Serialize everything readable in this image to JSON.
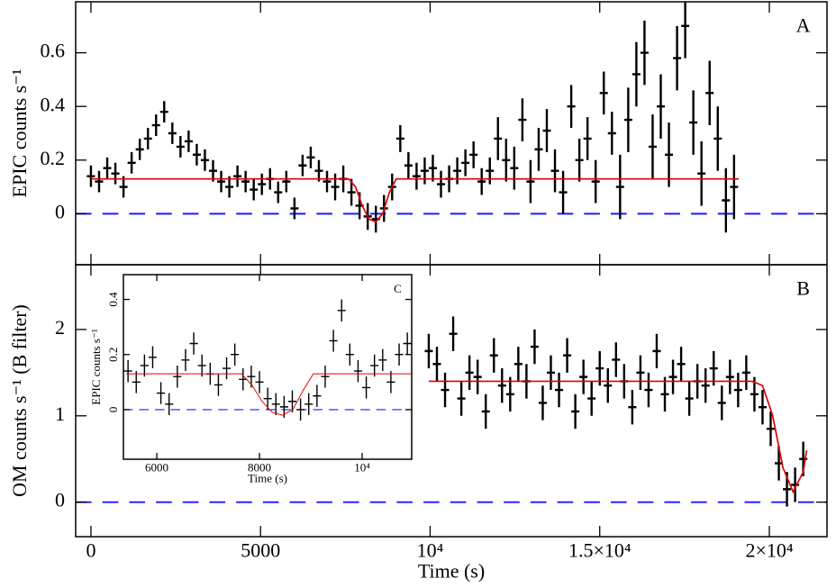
{
  "chart_data": [
    {
      "type": "errorbar",
      "panel_label": "A",
      "y_label": "EPIC counts s⁻¹",
      "xlim": [
        -450,
        21700
      ],
      "ylim": [
        -0.19,
        0.79
      ],
      "yticks": [
        0,
        0.2,
        0.4,
        0.6
      ],
      "reference_line": 0,
      "reference_color": "#1a1aff",
      "color": "#000000",
      "x": [
        0,
        240,
        480,
        720,
        960,
        1200,
        1440,
        1680,
        1920,
        2160,
        2400,
        2640,
        2880,
        3120,
        3360,
        3600,
        3840,
        4080,
        4320,
        4560,
        4800,
        5040,
        5280,
        5520,
        5760,
        6000,
        6240,
        6480,
        6720,
        6960,
        7200,
        7440,
        7680,
        7920,
        8160,
        8400,
        8640,
        8880,
        9120,
        9360,
        9600,
        9840,
        10080,
        10320,
        10560,
        10800,
        11040,
        11280,
        11520,
        11760,
        12000,
        12240,
        12480,
        12720,
        12960,
        13200,
        13440,
        13680,
        13920,
        14160,
        14400,
        14640,
        14880,
        15120,
        15360,
        15600,
        15840,
        16080,
        16320,
        16560,
        16800,
        17040,
        17280,
        17520,
        17760,
        18000,
        18240,
        18480,
        18720,
        18960
      ],
      "values": [
        0.14,
        0.12,
        0.17,
        0.15,
        0.1,
        0.19,
        0.24,
        0.28,
        0.33,
        0.38,
        0.3,
        0.25,
        0.27,
        0.22,
        0.2,
        0.16,
        0.12,
        0.1,
        0.14,
        0.12,
        0.09,
        0.11,
        0.13,
        0.08,
        0.12,
        0.02,
        0.18,
        0.21,
        0.16,
        0.12,
        0.1,
        0.13,
        0.08,
        0.03,
        -0.01,
        -0.02,
        0.02,
        0.1,
        0.28,
        0.18,
        0.14,
        0.16,
        0.17,
        0.11,
        0.13,
        0.16,
        0.19,
        0.22,
        0.12,
        0.16,
        0.28,
        0.2,
        0.17,
        0.35,
        0.12,
        0.24,
        0.31,
        0.16,
        0.08,
        0.4,
        0.2,
        0.28,
        0.12,
        0.45,
        0.3,
        0.1,
        0.35,
        0.52,
        0.6,
        0.25,
        0.4,
        0.22,
        0.58,
        0.7,
        0.34,
        0.15,
        0.45,
        0.28,
        0.05,
        0.1
      ],
      "errors": [
        0.04,
        0.04,
        0.04,
        0.04,
        0.04,
        0.04,
        0.04,
        0.04,
        0.04,
        0.04,
        0.04,
        0.04,
        0.04,
        0.04,
        0.04,
        0.04,
        0.04,
        0.04,
        0.04,
        0.04,
        0.04,
        0.04,
        0.04,
        0.04,
        0.04,
        0.04,
        0.04,
        0.04,
        0.04,
        0.04,
        0.05,
        0.05,
        0.05,
        0.05,
        0.05,
        0.05,
        0.05,
        0.05,
        0.05,
        0.05,
        0.05,
        0.05,
        0.05,
        0.05,
        0.05,
        0.05,
        0.05,
        0.05,
        0.05,
        0.05,
        0.08,
        0.08,
        0.08,
        0.08,
        0.08,
        0.08,
        0.08,
        0.08,
        0.08,
        0.08,
        0.08,
        0.08,
        0.08,
        0.08,
        0.08,
        0.12,
        0.12,
        0.12,
        0.12,
        0.12,
        0.12,
        0.12,
        0.12,
        0.12,
        0.12,
        0.12,
        0.12,
        0.12,
        0.12,
        0.12
      ],
      "model": {
        "color": "#e00000",
        "x": [
          0,
          7600,
          7800,
          8000,
          8200,
          8400,
          8600,
          8800,
          9000,
          19100
        ],
        "values": [
          0.13,
          0.13,
          0.1,
          0.03,
          -0.02,
          -0.03,
          0.0,
          0.08,
          0.13,
          0.13
        ]
      }
    },
    {
      "type": "errorbar",
      "panel_label": "B",
      "y_label": "OM counts s⁻¹ (B filter)",
      "x_label": "Time (s)",
      "xlim": [
        -450,
        21700
      ],
      "ylim": [
        -0.4,
        2.75
      ],
      "yticks": [
        0,
        1,
        2
      ],
      "xticks": [
        0,
        5000,
        {
          "value": 10000,
          "label": "10⁴"
        },
        {
          "value": 15000,
          "label": "1.5×10⁴"
        },
        {
          "value": 20000,
          "label": "2×10⁴"
        }
      ],
      "reference_line": 0,
      "reference_color": "#1a1aff",
      "color": "#000000",
      "x": [
        9960,
        10200,
        10440,
        10680,
        10920,
        11160,
        11400,
        11640,
        11880,
        12120,
        12360,
        12600,
        12840,
        13080,
        13320,
        13560,
        13800,
        14040,
        14280,
        14520,
        14760,
        15000,
        15240,
        15480,
        15720,
        15960,
        16200,
        16440,
        16680,
        16920,
        17160,
        17400,
        17640,
        17880,
        18120,
        18360,
        18600,
        18840,
        19080,
        19320,
        19560,
        19800,
        20040,
        20280,
        20520,
        20760,
        21000
      ],
      "values": [
        1.75,
        1.6,
        1.3,
        1.95,
        1.2,
        1.5,
        1.45,
        1.05,
        1.7,
        1.35,
        1.25,
        1.6,
        1.4,
        1.8,
        1.15,
        1.5,
        1.3,
        1.7,
        1.05,
        1.45,
        1.2,
        1.55,
        1.35,
        1.65,
        1.4,
        1.1,
        1.5,
        1.3,
        1.75,
        1.25,
        1.45,
        1.6,
        1.2,
        1.4,
        1.35,
        1.55,
        1.15,
        1.45,
        1.3,
        1.5,
        1.25,
        1.1,
        0.85,
        0.45,
        0.15,
        0.2,
        0.5
      ],
      "errors": [
        0.2,
        0.2,
        0.2,
        0.2,
        0.2,
        0.2,
        0.2,
        0.2,
        0.2,
        0.2,
        0.2,
        0.2,
        0.2,
        0.2,
        0.2,
        0.2,
        0.2,
        0.2,
        0.2,
        0.2,
        0.2,
        0.2,
        0.2,
        0.2,
        0.2,
        0.2,
        0.2,
        0.2,
        0.2,
        0.2,
        0.2,
        0.2,
        0.2,
        0.2,
        0.2,
        0.2,
        0.2,
        0.2,
        0.2,
        0.2,
        0.2,
        0.2,
        0.2,
        0.2,
        0.2,
        0.2,
        0.2
      ],
      "model": {
        "color": "#e00000",
        "x": [
          9960,
          19500,
          19800,
          20100,
          20400,
          20700,
          21000,
          21100
        ],
        "values": [
          1.4,
          1.4,
          1.35,
          1.0,
          0.4,
          0.12,
          0.35,
          0.6
        ]
      }
    },
    {
      "type": "errorbar",
      "panel_label": "C",
      "y_label": "EPIC counts s⁻¹",
      "x_label": "Time (s)",
      "xlim": [
        5350,
        10965
      ],
      "ylim": [
        -0.18,
        0.49
      ],
      "yticks": [
        0,
        0.2,
        0.4
      ],
      "xticks": [
        6000,
        8000,
        {
          "value": 10000,
          "label": "10⁴"
        }
      ],
      "reference_line": 0,
      "reference_color": "#1a1aff",
      "color": "#000000",
      "x": [
        5440,
        5600,
        5760,
        5920,
        6080,
        6240,
        6400,
        6560,
        6720,
        6880,
        7040,
        7200,
        7360,
        7520,
        7680,
        7840,
        8000,
        8160,
        8320,
        8480,
        8640,
        8800,
        8960,
        9120,
        9280,
        9440,
        9600,
        9760,
        9920,
        10080,
        10240,
        10400,
        10560,
        10720,
        10880
      ],
      "values": [
        0.14,
        0.1,
        0.16,
        0.19,
        0.06,
        0.02,
        0.12,
        0.18,
        0.24,
        0.16,
        0.13,
        0.09,
        0.15,
        0.2,
        0.11,
        0.12,
        0.1,
        0.04,
        0.02,
        0.01,
        0.03,
        0.0,
        0.02,
        0.05,
        0.12,
        0.25,
        0.36,
        0.2,
        0.14,
        0.08,
        0.16,
        0.18,
        0.1,
        0.2,
        0.24
      ],
      "errors": [
        0.04,
        0.04,
        0.04,
        0.04,
        0.04,
        0.04,
        0.04,
        0.04,
        0.04,
        0.04,
        0.04,
        0.04,
        0.04,
        0.04,
        0.04,
        0.04,
        0.04,
        0.04,
        0.04,
        0.04,
        0.04,
        0.04,
        0.04,
        0.04,
        0.04,
        0.04,
        0.04,
        0.04,
        0.04,
        0.04,
        0.04,
        0.04,
        0.04,
        0.04,
        0.04
      ],
      "model": {
        "color": "#e00000",
        "x": [
          5400,
          7650,
          7850,
          8050,
          8250,
          8450,
          8650,
          8850,
          9050,
          10950
        ],
        "values": [
          0.13,
          0.13,
          0.09,
          0.03,
          -0.01,
          -0.02,
          0.0,
          0.07,
          0.13,
          0.13
        ]
      }
    }
  ]
}
